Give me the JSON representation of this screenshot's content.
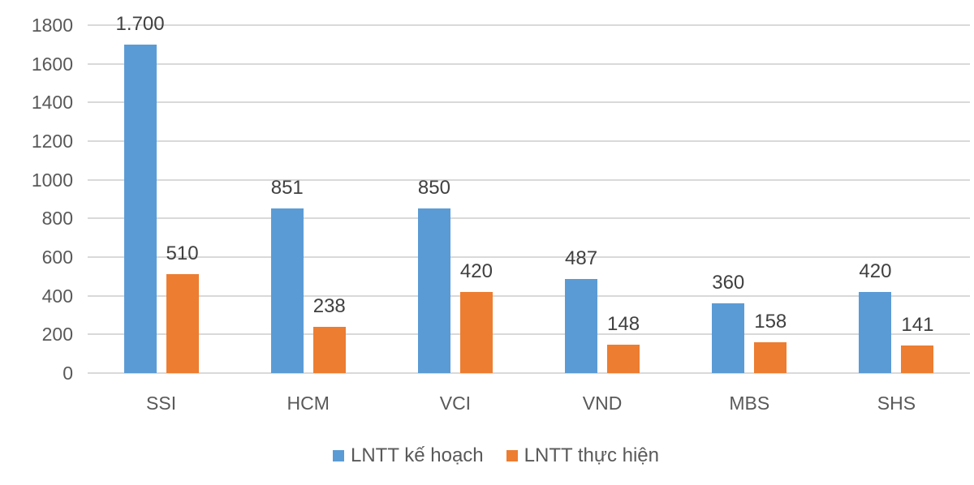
{
  "chart_data": {
    "type": "bar",
    "title": "",
    "xlabel": "",
    "ylabel": "",
    "ylim": [
      0,
      1800
    ],
    "yticks": [
      0,
      200,
      400,
      600,
      800,
      1000,
      1200,
      1400,
      1600,
      1800
    ],
    "grid": true,
    "legend_position": "bottom",
    "categories": [
      "SSI",
      "HCM",
      "VCI",
      "VND",
      "MBS",
      "SHS"
    ],
    "series": [
      {
        "name": "LNTT kế hoạch",
        "color": "#5b9bd5",
        "values": [
          1700,
          851,
          850,
          487,
          360,
          420
        ],
        "labels": [
          "1.700",
          "851",
          "850",
          "487",
          "360",
          "420"
        ]
      },
      {
        "name": "LNTT thực hiện",
        "color": "#ed7d31",
        "values": [
          510,
          238,
          420,
          148,
          158,
          141
        ],
        "labels": [
          "510",
          "238",
          "420",
          "148",
          "158",
          "141"
        ]
      }
    ]
  },
  "legend": {
    "items": [
      {
        "label": "LNTT kế hoạch",
        "color": "#5b9bd5"
      },
      {
        "label": "LNTT thực hiện",
        "color": "#ed7d31"
      }
    ]
  }
}
